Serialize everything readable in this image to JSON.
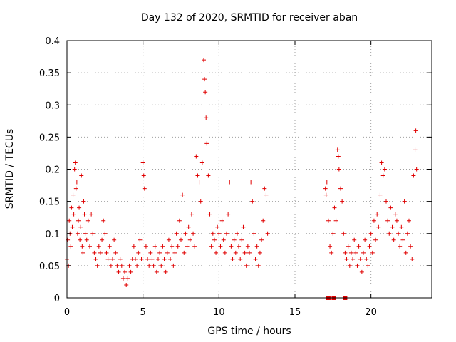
{
  "chart_data": {
    "type": "scatter",
    "title": "Day 132 of 2020, SRMTID for receiver aban",
    "xlabel": "GPS time / hours",
    "ylabel": "SRMTID / TECUs",
    "xlim": [
      0,
      24
    ],
    "ylim": [
      0,
      0.4
    ],
    "xticks": [
      0,
      5,
      10,
      15,
      20
    ],
    "xtick_labels": [
      "0",
      "5",
      "10",
      "15",
      "20"
    ],
    "yticks": [
      0,
      0.05,
      0.1,
      0.15,
      0.2,
      0.25,
      0.3,
      0.35,
      0.4
    ],
    "ytick_labels": [
      "0",
      "0.05",
      "0.1",
      "0.15",
      "0.2",
      "0.25",
      "0.3",
      "0.35",
      "0.4"
    ],
    "grid": true,
    "marker": "+",
    "color": "#e00000",
    "series": [
      {
        "name": "SRMTID",
        "points": [
          [
            0.0,
            0.06
          ],
          [
            0.05,
            0.09
          ],
          [
            0.1,
            0.05
          ],
          [
            0.15,
            0.12
          ],
          [
            0.2,
            0.1
          ],
          [
            0.25,
            0.08
          ],
          [
            0.3,
            0.14
          ],
          [
            0.35,
            0.11
          ],
          [
            0.4,
            0.16
          ],
          [
            0.45,
            0.13
          ],
          [
            0.5,
            0.2
          ],
          [
            0.55,
            0.21
          ],
          [
            0.6,
            0.17
          ],
          [
            0.65,
            0.18
          ],
          [
            0.7,
            0.1
          ],
          [
            0.75,
            0.12
          ],
          [
            0.8,
            0.14
          ],
          [
            0.85,
            0.09
          ],
          [
            0.9,
            0.11
          ],
          [
            0.95,
            0.19
          ],
          [
            1.0,
            0.08
          ],
          [
            1.05,
            0.07
          ],
          [
            1.1,
            0.15
          ],
          [
            1.15,
            0.13
          ],
          [
            1.2,
            0.1
          ],
          [
            1.3,
            0.09
          ],
          [
            1.4,
            0.12
          ],
          [
            1.5,
            0.08
          ],
          [
            1.6,
            0.13
          ],
          [
            1.7,
            0.1
          ],
          [
            1.8,
            0.07
          ],
          [
            1.9,
            0.06
          ],
          [
            2.0,
            0.05
          ],
          [
            2.1,
            0.08
          ],
          [
            2.2,
            0.07
          ],
          [
            2.3,
            0.09
          ],
          [
            2.4,
            0.12
          ],
          [
            2.5,
            0.1
          ],
          [
            2.6,
            0.07
          ],
          [
            2.7,
            0.06
          ],
          [
            2.8,
            0.08
          ],
          [
            2.9,
            0.05
          ],
          [
            3.0,
            0.06
          ],
          [
            3.1,
            0.09
          ],
          [
            3.2,
            0.07
          ],
          [
            3.3,
            0.05
          ],
          [
            3.4,
            0.04
          ],
          [
            3.5,
            0.06
          ],
          [
            3.6,
            0.05
          ],
          [
            3.7,
            0.03
          ],
          [
            3.8,
            0.04
          ],
          [
            3.9,
            0.02
          ],
          [
            4.0,
            0.03
          ],
          [
            4.1,
            0.05
          ],
          [
            4.2,
            0.04
          ],
          [
            4.3,
            0.06
          ],
          [
            4.4,
            0.08
          ],
          [
            4.5,
            0.06
          ],
          [
            4.6,
            0.05
          ],
          [
            4.7,
            0.07
          ],
          [
            4.8,
            0.09
          ],
          [
            4.9,
            0.06
          ],
          [
            5.0,
            0.21
          ],
          [
            5.05,
            0.19
          ],
          [
            5.1,
            0.17
          ],
          [
            5.2,
            0.08
          ],
          [
            5.3,
            0.06
          ],
          [
            5.4,
            0.05
          ],
          [
            5.5,
            0.07
          ],
          [
            5.6,
            0.06
          ],
          [
            5.7,
            0.05
          ],
          [
            5.8,
            0.08
          ],
          [
            5.9,
            0.04
          ],
          [
            6.0,
            0.06
          ],
          [
            6.1,
            0.07
          ],
          [
            6.2,
            0.05
          ],
          [
            6.3,
            0.08
          ],
          [
            6.4,
            0.06
          ],
          [
            6.5,
            0.04
          ],
          [
            6.6,
            0.07
          ],
          [
            6.7,
            0.09
          ],
          [
            6.8,
            0.06
          ],
          [
            6.9,
            0.08
          ],
          [
            7.0,
            0.05
          ],
          [
            7.1,
            0.07
          ],
          [
            7.2,
            0.1
          ],
          [
            7.3,
            0.08
          ],
          [
            7.4,
            0.12
          ],
          [
            7.5,
            0.09
          ],
          [
            7.6,
            0.16
          ],
          [
            7.7,
            0.07
          ],
          [
            7.8,
            0.1
          ],
          [
            7.9,
            0.08
          ],
          [
            8.0,
            0.11
          ],
          [
            8.1,
            0.09
          ],
          [
            8.2,
            0.13
          ],
          [
            8.3,
            0.1
          ],
          [
            8.4,
            0.08
          ],
          [
            8.5,
            0.22
          ],
          [
            8.6,
            0.19
          ],
          [
            8.7,
            0.18
          ],
          [
            8.8,
            0.15
          ],
          [
            8.9,
            0.21
          ],
          [
            9.0,
            0.37
          ],
          [
            9.05,
            0.34
          ],
          [
            9.1,
            0.32
          ],
          [
            9.15,
            0.28
          ],
          [
            9.2,
            0.24
          ],
          [
            9.3,
            0.19
          ],
          [
            9.4,
            0.13
          ],
          [
            9.5,
            0.08
          ],
          [
            9.6,
            0.1
          ],
          [
            9.7,
            0.09
          ],
          [
            9.8,
            0.07
          ],
          [
            9.9,
            0.11
          ],
          [
            10.0,
            0.1
          ],
          [
            10.1,
            0.08
          ],
          [
            10.2,
            0.12
          ],
          [
            10.3,
            0.09
          ],
          [
            10.4,
            0.07
          ],
          [
            10.5,
            0.1
          ],
          [
            10.6,
            0.13
          ],
          [
            10.7,
            0.18
          ],
          [
            10.8,
            0.08
          ],
          [
            10.9,
            0.06
          ],
          [
            11.0,
            0.09
          ],
          [
            11.1,
            0.07
          ],
          [
            11.2,
            0.1
          ],
          [
            11.3,
            0.08
          ],
          [
            11.4,
            0.06
          ],
          [
            11.5,
            0.09
          ],
          [
            11.6,
            0.11
          ],
          [
            11.7,
            0.07
          ],
          [
            11.8,
            0.05
          ],
          [
            11.9,
            0.08
          ],
          [
            12.0,
            0.07
          ],
          [
            12.1,
            0.18
          ],
          [
            12.2,
            0.15
          ],
          [
            12.3,
            0.1
          ],
          [
            12.4,
            0.06
          ],
          [
            12.5,
            0.08
          ],
          [
            12.6,
            0.05
          ],
          [
            12.7,
            0.07
          ],
          [
            12.8,
            0.09
          ],
          [
            12.9,
            0.12
          ],
          [
            13.0,
            0.17
          ],
          [
            13.1,
            0.16
          ],
          [
            13.2,
            0.1
          ],
          [
            17.0,
            0.17
          ],
          [
            17.05,
            0.16
          ],
          [
            17.1,
            0.18
          ],
          [
            17.2,
            0.12
          ],
          [
            17.3,
            0.08
          ],
          [
            17.4,
            0.07
          ],
          [
            17.5,
            0.1
          ],
          [
            17.6,
            0.14
          ],
          [
            17.7,
            0.12
          ],
          [
            17.8,
            0.23
          ],
          [
            17.85,
            0.22
          ],
          [
            17.9,
            0.2
          ],
          [
            18.0,
            0.17
          ],
          [
            18.1,
            0.15
          ],
          [
            18.2,
            0.1
          ],
          [
            18.3,
            0.07
          ],
          [
            18.4,
            0.06
          ],
          [
            18.5,
            0.08
          ],
          [
            18.6,
            0.05
          ],
          [
            18.7,
            0.07
          ],
          [
            18.8,
            0.06
          ],
          [
            18.9,
            0.09
          ],
          [
            19.0,
            0.07
          ],
          [
            19.1,
            0.05
          ],
          [
            19.2,
            0.08
          ],
          [
            19.3,
            0.06
          ],
          [
            19.4,
            0.04
          ],
          [
            19.5,
            0.07
          ],
          [
            19.6,
            0.09
          ],
          [
            19.7,
            0.06
          ],
          [
            19.8,
            0.05
          ],
          [
            19.9,
            0.08
          ],
          [
            20.0,
            0.1
          ],
          [
            20.1,
            0.07
          ],
          [
            20.2,
            0.12
          ],
          [
            20.3,
            0.09
          ],
          [
            20.4,
            0.13
          ],
          [
            20.5,
            0.11
          ],
          [
            20.6,
            0.16
          ],
          [
            20.7,
            0.21
          ],
          [
            20.8,
            0.19
          ],
          [
            20.9,
            0.2
          ],
          [
            21.0,
            0.15
          ],
          [
            21.1,
            0.12
          ],
          [
            21.2,
            0.1
          ],
          [
            21.3,
            0.14
          ],
          [
            21.4,
            0.11
          ],
          [
            21.5,
            0.09
          ],
          [
            21.6,
            0.13
          ],
          [
            21.7,
            0.12
          ],
          [
            21.8,
            0.1
          ],
          [
            21.9,
            0.08
          ],
          [
            22.0,
            0.11
          ],
          [
            22.1,
            0.09
          ],
          [
            22.2,
            0.15
          ],
          [
            22.3,
            0.07
          ],
          [
            22.4,
            0.1
          ],
          [
            22.5,
            0.12
          ],
          [
            22.6,
            0.08
          ],
          [
            22.7,
            0.06
          ],
          [
            22.8,
            0.19
          ],
          [
            22.9,
            0.23
          ],
          [
            22.95,
            0.26
          ],
          [
            23.0,
            0.2
          ]
        ]
      }
    ],
    "zero_markers": [
      17.2,
      17.55,
      18.3
    ]
  }
}
